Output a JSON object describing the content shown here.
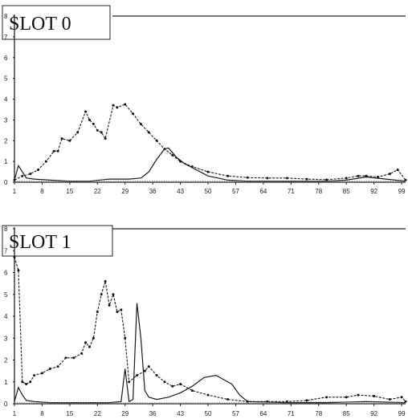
{
  "chart_data": [
    {
      "type": "line",
      "title": "SLOT 0",
      "ylim": [
        0,
        8
      ],
      "yticks": [
        "0",
        "1",
        "2",
        "3",
        "4",
        "5",
        "6",
        "7",
        "8"
      ],
      "xlim": [
        1,
        100
      ],
      "xticks": [
        "1",
        "8",
        "15",
        "22",
        "29",
        "36",
        "43",
        "50",
        "57",
        "64",
        "71",
        "78",
        "85",
        "92",
        "99"
      ],
      "grid": false,
      "series": [
        {
          "style": "dashed-markers",
          "points": [
            [
              1,
              0.1
            ],
            [
              3,
              0.3
            ],
            [
              5,
              0.4
            ],
            [
              7,
              0.6
            ],
            [
              9,
              1.0
            ],
            [
              11,
              1.5
            ],
            [
              12,
              1.5
            ],
            [
              13,
              2.1
            ],
            [
              15,
              2.0
            ],
            [
              17,
              2.4
            ],
            [
              19,
              3.4
            ],
            [
              20,
              3.0
            ],
            [
              21,
              2.8
            ],
            [
              22,
              2.5
            ],
            [
              23,
              2.4
            ],
            [
              24,
              2.1
            ],
            [
              26,
              3.7
            ],
            [
              27,
              3.6
            ],
            [
              29,
              3.75
            ],
            [
              31,
              3.3
            ],
            [
              33,
              2.8
            ],
            [
              35,
              2.4
            ],
            [
              37,
              2.0
            ],
            [
              39,
              1.6
            ],
            [
              41,
              1.3
            ],
            [
              43,
              1.0
            ],
            [
              46,
              0.75
            ],
            [
              50,
              0.5
            ],
            [
              55,
              0.3
            ],
            [
              60,
              0.22
            ],
            [
              65,
              0.2
            ],
            [
              70,
              0.2
            ],
            [
              75,
              0.15
            ],
            [
              80,
              0.12
            ],
            [
              85,
              0.2
            ],
            [
              88,
              0.3
            ],
            [
              90,
              0.3
            ],
            [
              93,
              0.25
            ],
            [
              96,
              0.4
            ],
            [
              98,
              0.6
            ],
            [
              100,
              0.1
            ]
          ]
        },
        {
          "style": "solid",
          "points": [
            [
              1,
              0.1
            ],
            [
              2,
              0.8
            ],
            [
              3,
              0.5
            ],
            [
              4,
              0.2
            ],
            [
              6,
              0.15
            ],
            [
              10,
              0.1
            ],
            [
              15,
              0.05
            ],
            [
              20,
              0.05
            ],
            [
              25,
              0.15
            ],
            [
              30,
              0.15
            ],
            [
              33,
              0.2
            ],
            [
              35,
              0.5
            ],
            [
              37,
              1.1
            ],
            [
              39,
              1.6
            ],
            [
              40,
              1.65
            ],
            [
              42,
              1.2
            ],
            [
              44,
              0.9
            ],
            [
              47,
              0.6
            ],
            [
              50,
              0.3
            ],
            [
              55,
              0.1
            ],
            [
              60,
              0.05
            ],
            [
              70,
              0.05
            ],
            [
              80,
              0.05
            ],
            [
              85,
              0.1
            ],
            [
              90,
              0.25
            ],
            [
              95,
              0.15
            ],
            [
              100,
              0.05
            ]
          ]
        },
        {
          "style": "dotted",
          "points": [
            [
              1,
              0.05
            ],
            [
              20,
              0.05
            ],
            [
              40,
              0.05
            ],
            [
              60,
              0.05
            ],
            [
              80,
              0.05
            ],
            [
              100,
              0.05
            ]
          ]
        }
      ]
    },
    {
      "type": "line",
      "title": "SLOT 1",
      "ylim": [
        0,
        8
      ],
      "yticks": [
        "0",
        "1",
        "2",
        "3",
        "4",
        "5",
        "6",
        "7",
        "8"
      ],
      "xlim": [
        1,
        100
      ],
      "xticks": [
        "1",
        "8",
        "15",
        "22",
        "29",
        "36",
        "43",
        "50",
        "57",
        "64",
        "71",
        "78",
        "85",
        "92",
        "99"
      ],
      "grid": false,
      "series": [
        {
          "style": "dashed-markers",
          "points": [
            [
              1,
              6.7
            ],
            [
              2,
              6.1
            ],
            [
              3,
              1.0
            ],
            [
              4,
              0.9
            ],
            [
              5,
              1.0
            ],
            [
              6,
              1.3
            ],
            [
              8,
              1.4
            ],
            [
              10,
              1.6
            ],
            [
              12,
              1.7
            ],
            [
              14,
              2.1
            ],
            [
              16,
              2.1
            ],
            [
              18,
              2.3
            ],
            [
              19,
              2.8
            ],
            [
              20,
              2.6
            ],
            [
              21,
              3.0
            ],
            [
              22,
              4.2
            ],
            [
              23,
              5.0
            ],
            [
              24,
              5.6
            ],
            [
              25,
              4.5
            ],
            [
              26,
              5.0
            ],
            [
              27,
              4.2
            ],
            [
              28,
              4.3
            ],
            [
              29,
              3.0
            ],
            [
              30,
              1.0
            ],
            [
              32,
              1.3
            ],
            [
              34,
              1.5
            ],
            [
              35,
              1.7
            ],
            [
              37,
              1.3
            ],
            [
              39,
              1.0
            ],
            [
              41,
              0.8
            ],
            [
              43,
              0.9
            ],
            [
              46,
              0.6
            ],
            [
              50,
              0.4
            ],
            [
              55,
              0.2
            ],
            [
              60,
              0.1
            ],
            [
              65,
              0.1
            ],
            [
              70,
              0.1
            ],
            [
              75,
              0.15
            ],
            [
              80,
              0.3
            ],
            [
              85,
              0.3
            ],
            [
              88,
              0.4
            ],
            [
              92,
              0.35
            ],
            [
              96,
              0.2
            ],
            [
              99,
              0.3
            ],
            [
              100,
              0.1
            ]
          ]
        },
        {
          "style": "solid",
          "points": [
            [
              1,
              0.1
            ],
            [
              2,
              0.75
            ],
            [
              3,
              0.4
            ],
            [
              4,
              0.15
            ],
            [
              6,
              0.1
            ],
            [
              10,
              0.05
            ],
            [
              20,
              0.05
            ],
            [
              25,
              0.05
            ],
            [
              28,
              0.1
            ],
            [
              29,
              1.6
            ],
            [
              30,
              0.1
            ],
            [
              31,
              0.2
            ],
            [
              32,
              4.6
            ],
            [
              33,
              3.0
            ],
            [
              34,
              0.6
            ],
            [
              35,
              0.3
            ],
            [
              37,
              0.2
            ],
            [
              40,
              0.3
            ],
            [
              43,
              0.5
            ],
            [
              46,
              0.8
            ],
            [
              49,
              1.2
            ],
            [
              52,
              1.3
            ],
            [
              54,
              1.1
            ],
            [
              56,
              0.9
            ],
            [
              58,
              0.4
            ],
            [
              60,
              0.1
            ],
            [
              70,
              0.05
            ],
            [
              80,
              0.05
            ],
            [
              90,
              0.1
            ],
            [
              100,
              0.05
            ]
          ]
        },
        {
          "style": "dotted",
          "points": [
            [
              1,
              0.05
            ],
            [
              30,
              0.05
            ],
            [
              60,
              0.05
            ],
            [
              80,
              0.1
            ],
            [
              90,
              0.05
            ],
            [
              100,
              0.05
            ]
          ]
        }
      ]
    }
  ]
}
